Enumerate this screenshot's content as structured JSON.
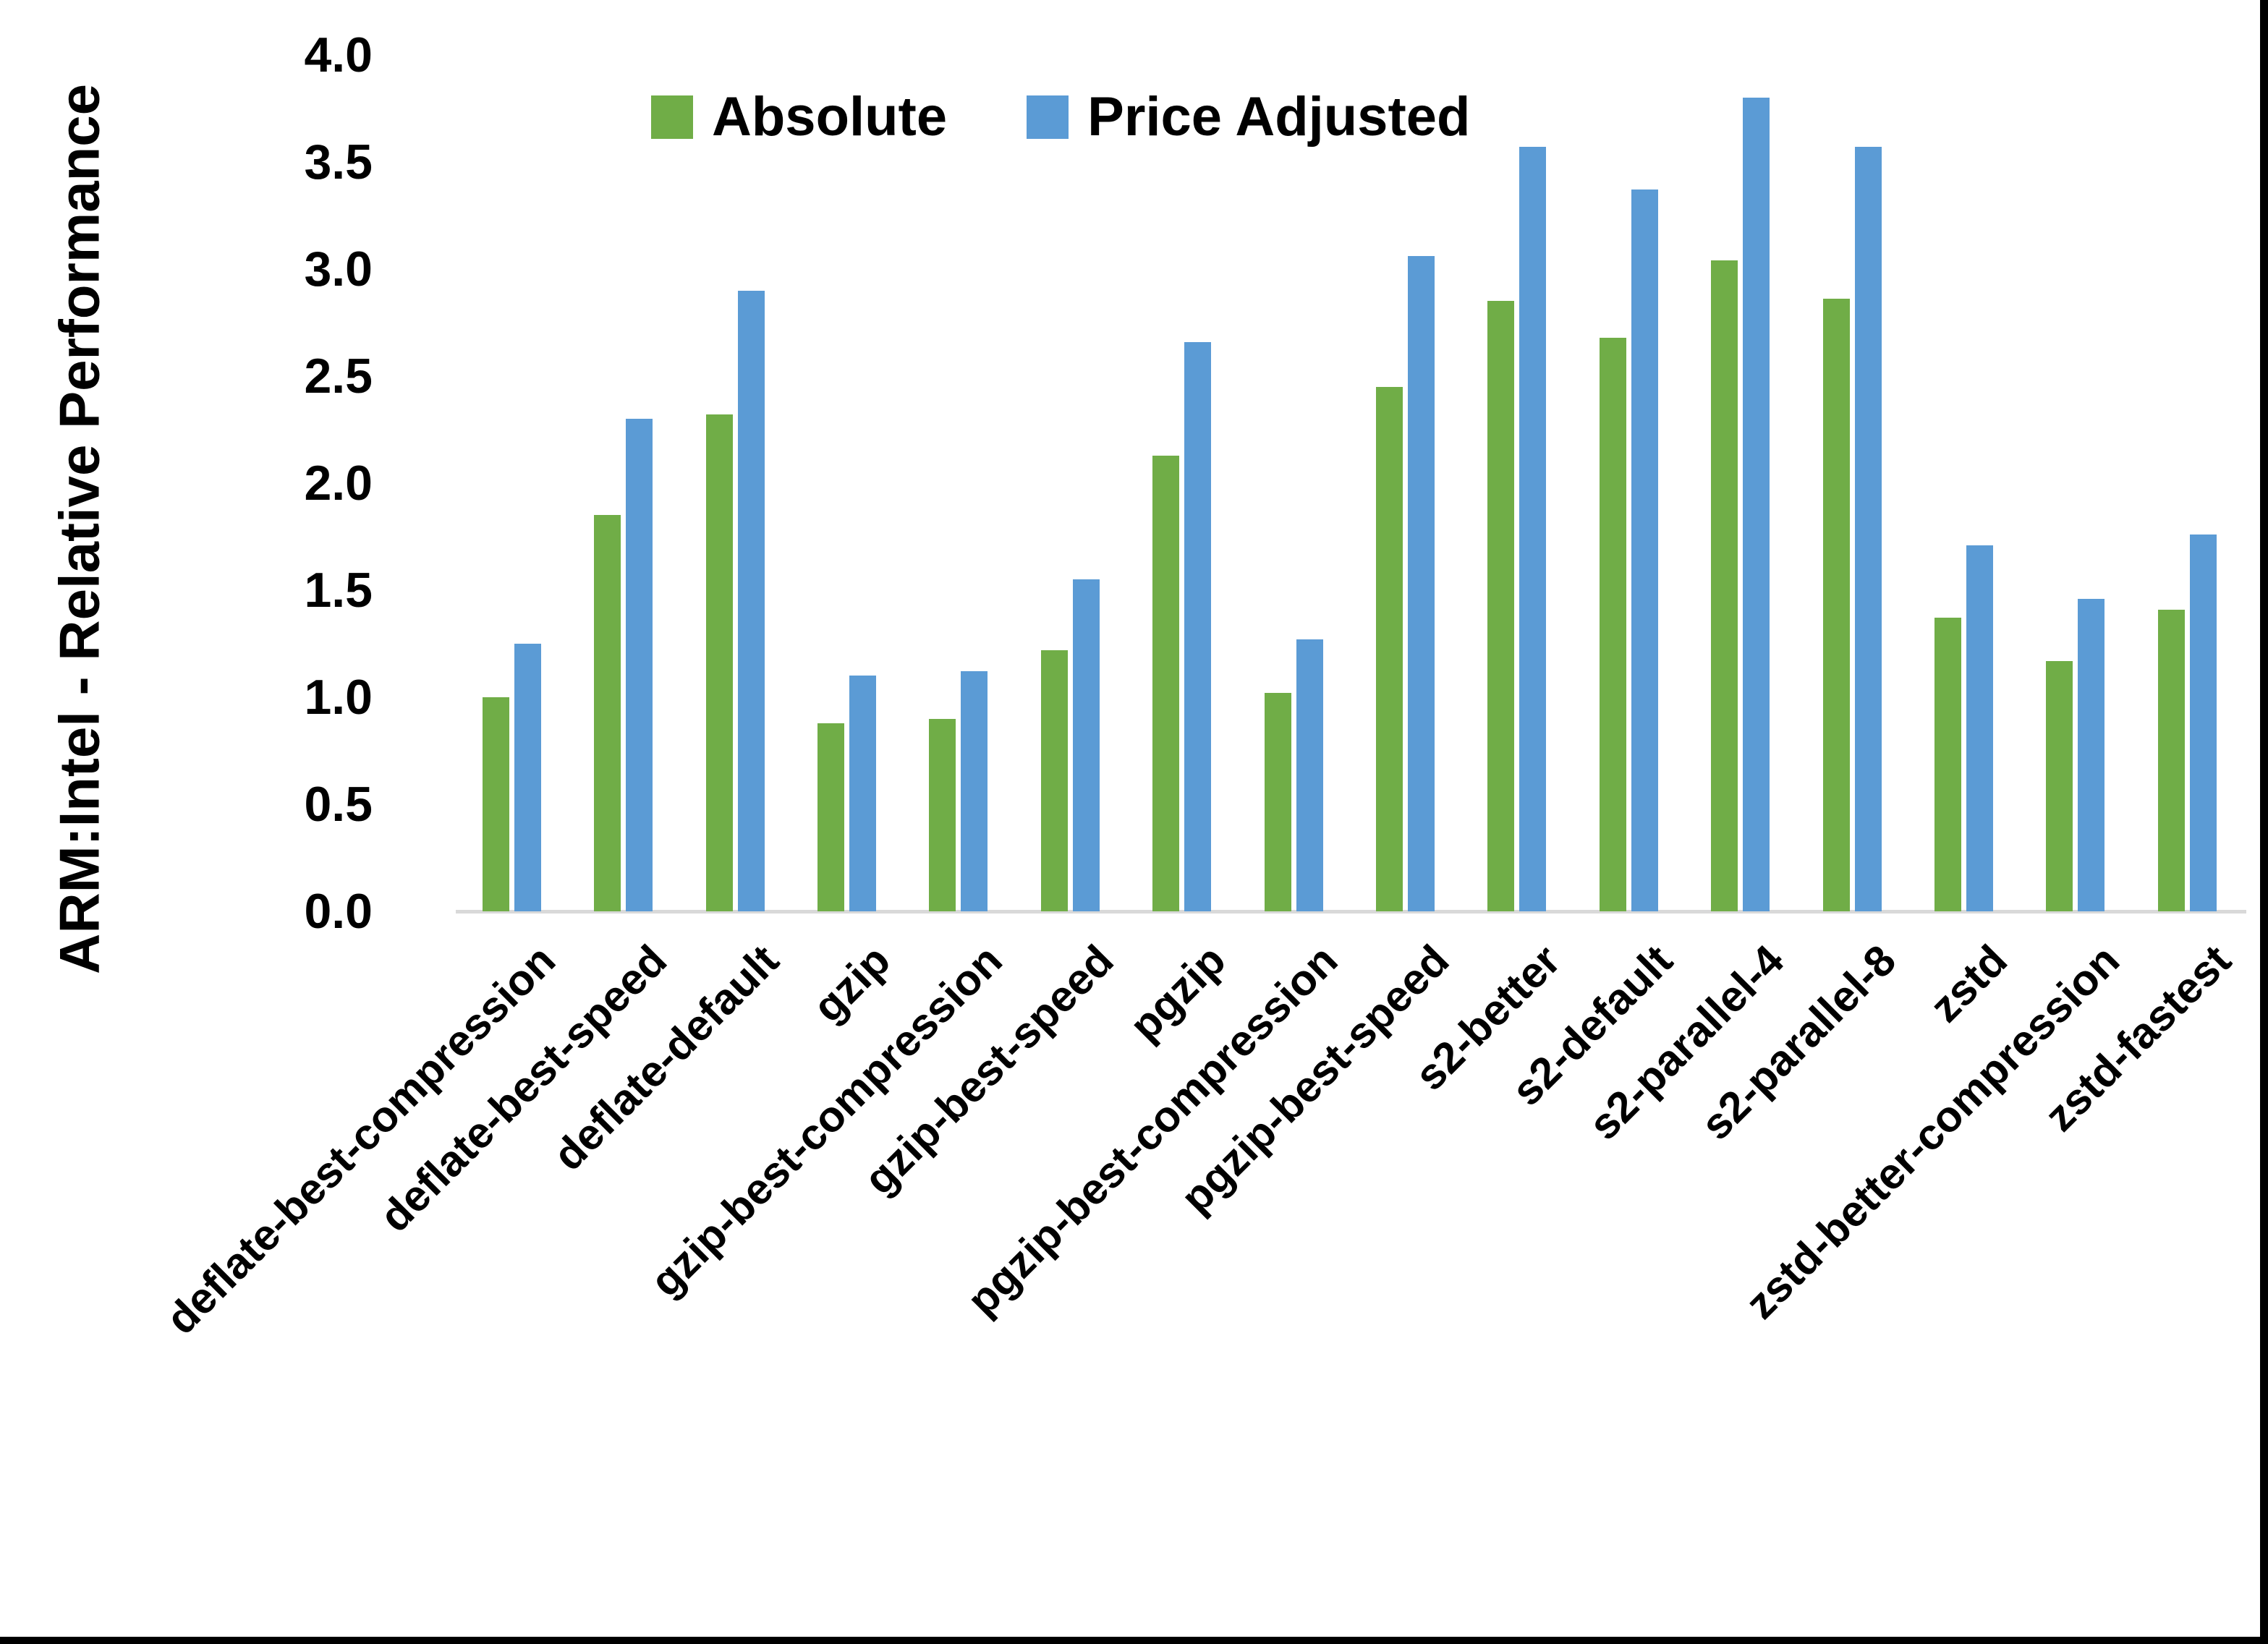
{
  "chart_data": {
    "type": "bar",
    "title": "",
    "xlabel": "",
    "ylabel": "ARM:Intel - Relative Performance",
    "ylim": [
      0.0,
      4.0
    ],
    "ytick_step": 0.5,
    "yticks": [
      "0.0",
      "0.5",
      "1.0",
      "1.5",
      "2.0",
      "2.5",
      "3.0",
      "3.5",
      "4.0"
    ],
    "grid": false,
    "legend_position": "top-center",
    "categories": [
      "deflate-best-compression",
      "deflate-best-speed",
      "deflate-default",
      "gzip",
      "gzip-best-compression",
      "gzip-best-speed",
      "pgzip",
      "pgzip-best-compression",
      "pgzip-best-speed",
      "s2-better",
      "s2-default",
      "s2-parallel-4",
      "s2-parallel-8",
      "zstd",
      "zstd-better-compression",
      "zstd-fastest"
    ],
    "series": [
      {
        "name": "Absolute",
        "color": "#70AD47",
        "values": [
          1.0,
          1.85,
          2.32,
          0.88,
          0.9,
          1.22,
          2.13,
          1.02,
          2.45,
          2.85,
          2.68,
          3.04,
          2.86,
          1.37,
          1.17,
          1.41
        ]
      },
      {
        "name": "Price Adjusted",
        "color": "#5B9BD5",
        "values": [
          1.25,
          2.3,
          2.9,
          1.1,
          1.12,
          1.55,
          2.66,
          1.27,
          3.06,
          3.57,
          3.37,
          3.8,
          3.57,
          1.71,
          1.46,
          1.76
        ]
      }
    ]
  },
  "colors": {
    "background": "#FFFFFF",
    "axis_line": "#D9D9D9",
    "text": "#000000",
    "page_border": "#000000"
  }
}
